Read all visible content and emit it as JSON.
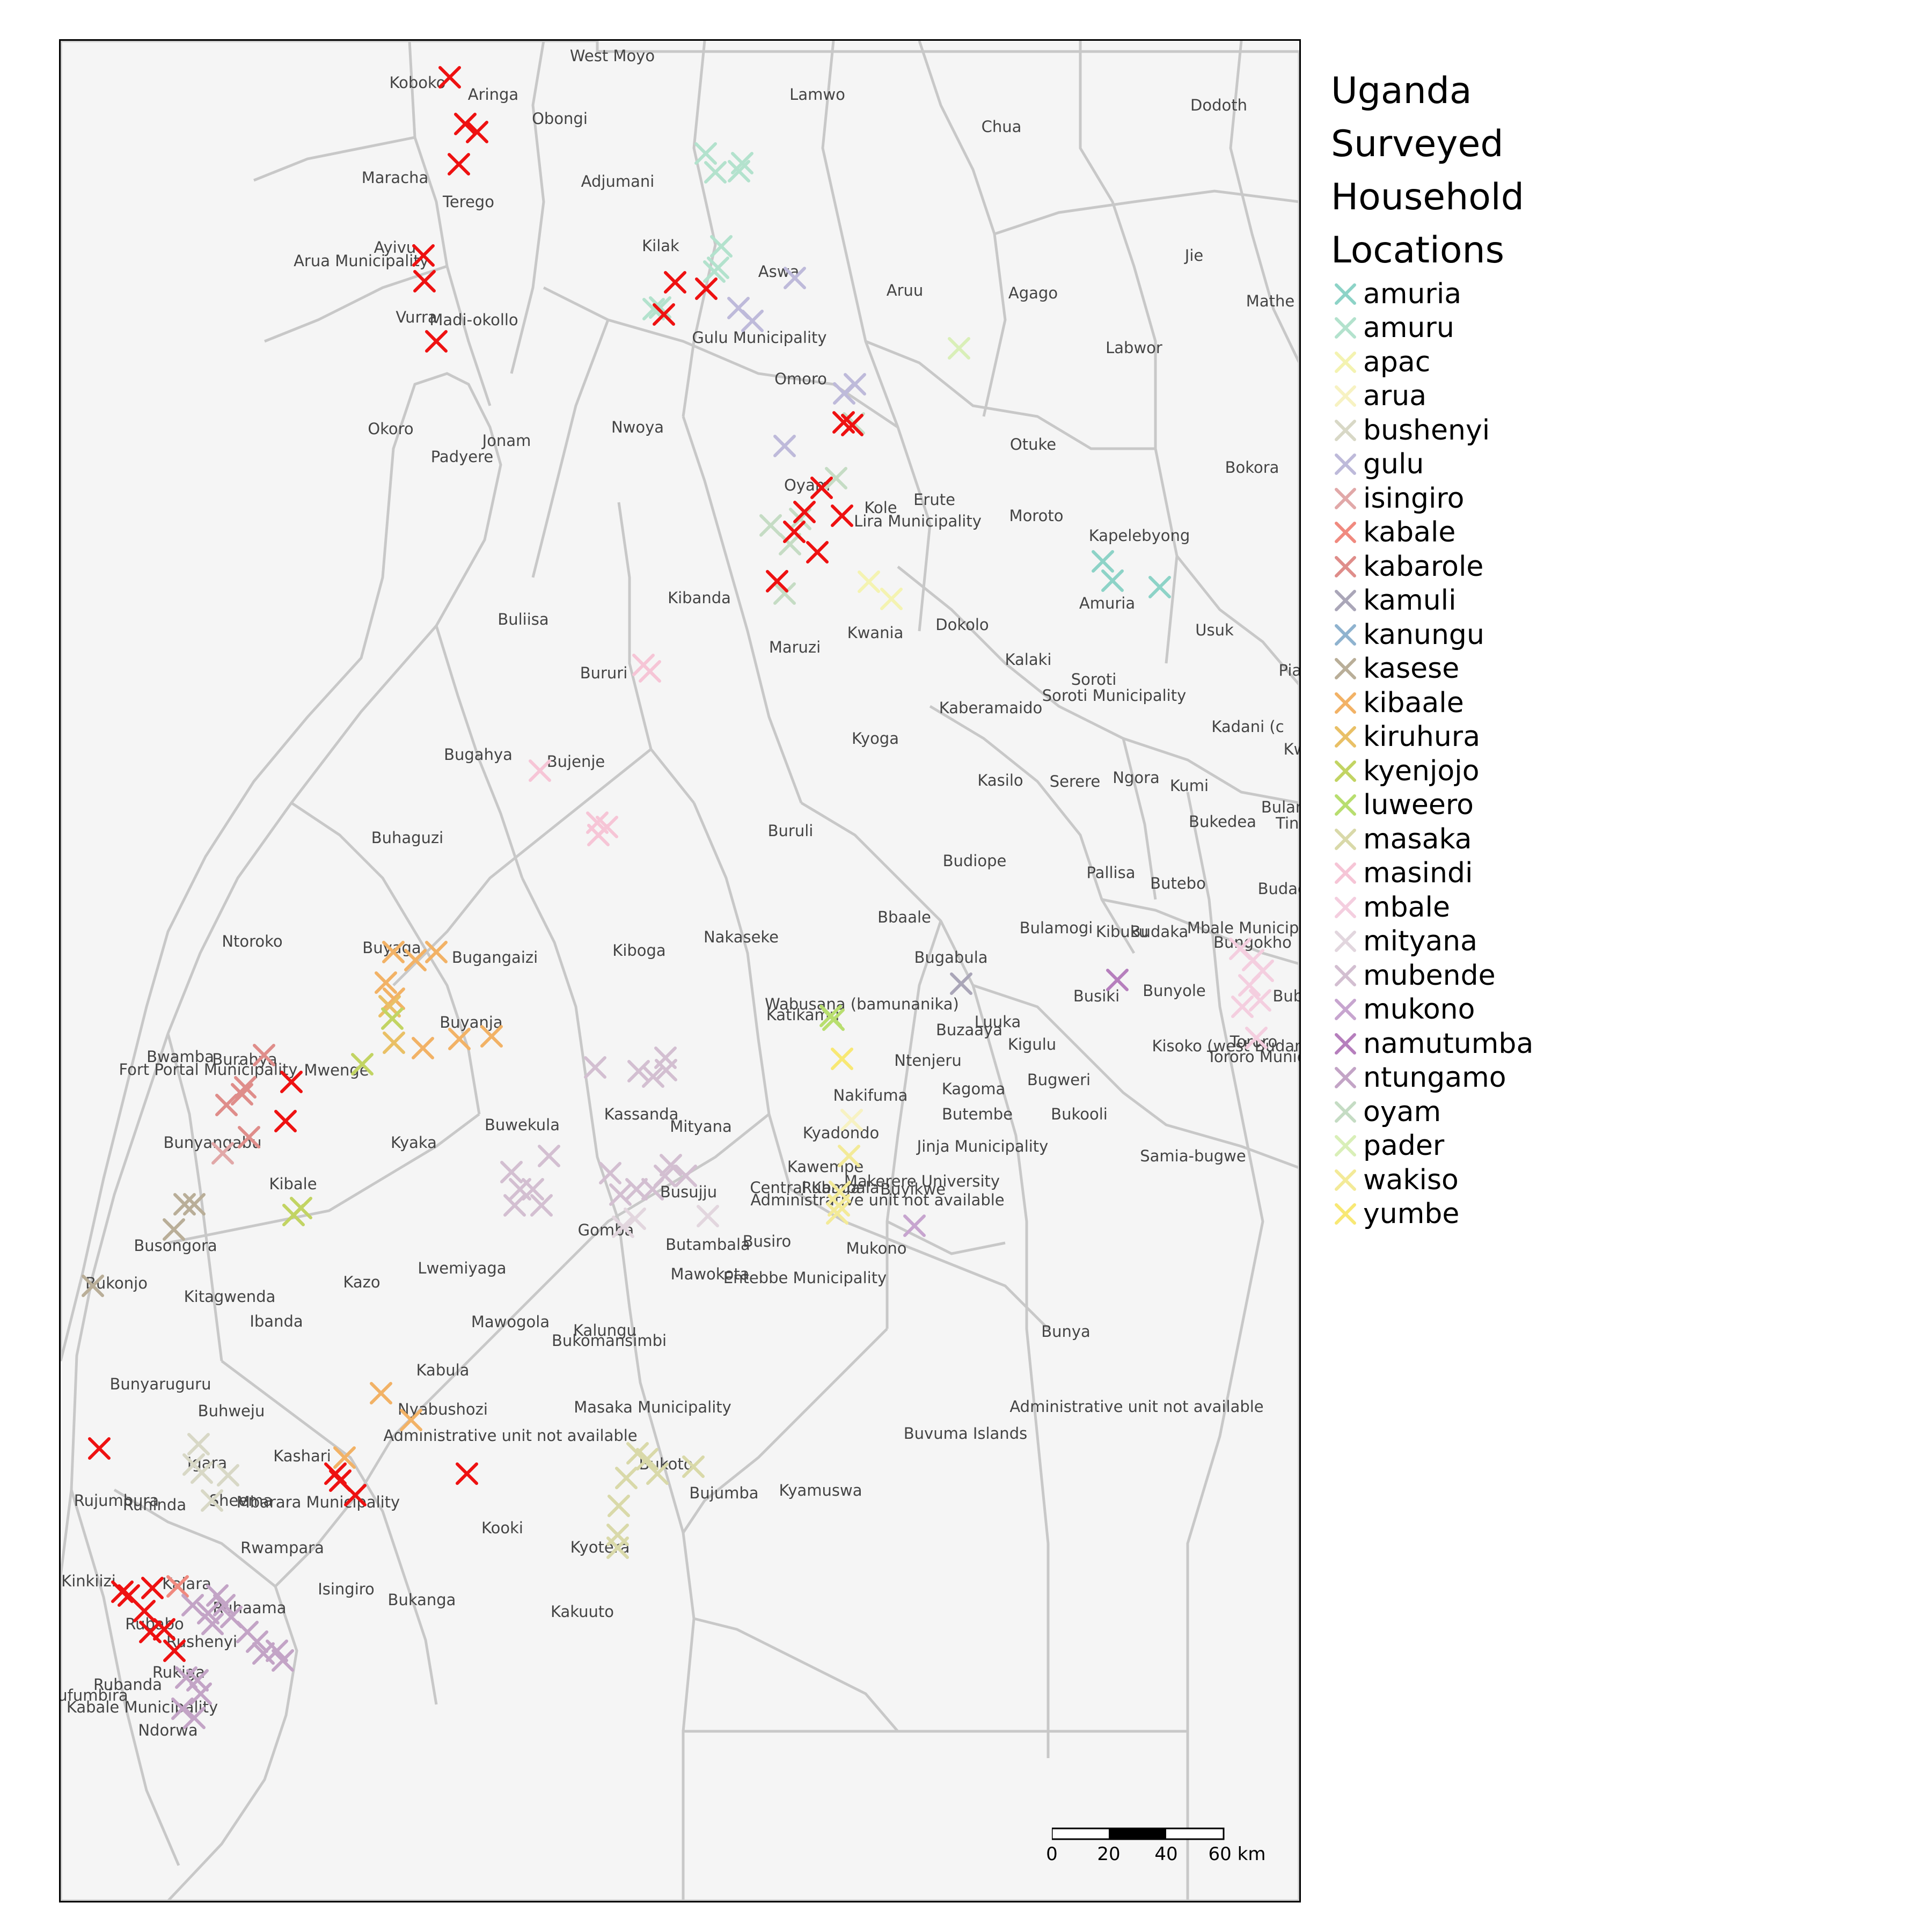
{
  "legend": {
    "title_lines": [
      "Uganda",
      "Surveyed",
      "Household",
      "Locations"
    ],
    "items": [
      {
        "label": "amuria",
        "color": "#8dd3c7"
      },
      {
        "label": "amuru",
        "color": "#b3e2cd"
      },
      {
        "label": "apac",
        "color": "#f4f3b1"
      },
      {
        "label": "arua",
        "color": "#f7f2c2"
      },
      {
        "label": "bushenyi",
        "color": "#d8d8c6"
      },
      {
        "label": "gulu",
        "color": "#bebada"
      },
      {
        "label": "isingiro",
        "color": "#e1a8a8"
      },
      {
        "label": "kabale",
        "color": "#f08a7f"
      },
      {
        "label": "kabarole",
        "color": "#df8d8a"
      },
      {
        "label": "kamuli",
        "color": "#aaa6b8"
      },
      {
        "label": "kanungu",
        "color": "#8fb3cf"
      },
      {
        "label": "kasese",
        "color": "#b9ae98"
      },
      {
        "label": "kibaale",
        "color": "#f2b266"
      },
      {
        "label": "kiruhura",
        "color": "#e9c066"
      },
      {
        "label": "kyenjojo",
        "color": "#c2d463"
      },
      {
        "label": "luweero",
        "color": "#b8de6f"
      },
      {
        "label": "masaka",
        "color": "#d9d9a9"
      },
      {
        "label": "masindi",
        "color": "#f6c5d6"
      },
      {
        "label": "mbale",
        "color": "#f4cedf"
      },
      {
        "label": "mityana",
        "color": "#e2d6de"
      },
      {
        "label": "mubende",
        "color": "#d3bfd1"
      },
      {
        "label": "mukono",
        "color": "#c7a5cf"
      },
      {
        "label": "namutumba",
        "color": "#b67fbd"
      },
      {
        "label": "ntungamo",
        "color": "#c3a4c6"
      },
      {
        "label": "oyam",
        "color": "#c5dcc4"
      },
      {
        "label": "pader",
        "color": "#d9efb8"
      },
      {
        "label": "wakiso",
        "color": "#f3ea98"
      },
      {
        "label": "yumbe",
        "color": "#f8e874"
      }
    ]
  },
  "unlabeled_marker_color": "#ee1111",
  "scalebar": {
    "ticks": [
      "0",
      "20",
      "40",
      "60 km"
    ]
  },
  "district_labels": [
    "West Moyo",
    "Koboko",
    "Aringa",
    "Obongi",
    "Lamwo",
    "Dodoth",
    "Chua",
    "Maracha",
    "Terego",
    "Adjumani",
    "Ayivu",
    "Arua Municipality",
    "Kilak",
    "Aswa",
    "Aruu",
    "Jie",
    "Agago",
    "Mathe",
    "Vurra",
    "Madi-okollo",
    "Gulu Municipality",
    "Labwor",
    "Omoro",
    "Okoro",
    "Padyere",
    "Jonam",
    "Nwoya",
    "Otuke",
    "Bokora",
    "Oyam",
    "Kole",
    "Erute",
    "Lira Municipality",
    "Moroto",
    "Kapelebyong",
    "Amuria",
    "Kibanda",
    "Kwania",
    "Dokolo",
    "Usuk",
    "Buliisa",
    "Bururi",
    "Maruzi",
    "Kalaki",
    "Soroti",
    "Soroti Municipality",
    "Pian",
    "Kaberamaido",
    "Kadani (c",
    "Kw",
    "Bugahya",
    "Bujenje",
    "Kyoga",
    "Kasilo",
    "Serere",
    "Ngora",
    "Kumi",
    "Bulam",
    "Bukedea",
    "Ting",
    "Buhaguzi",
    "Buruli",
    "Budiope",
    "Pallisa",
    "Butebo",
    "Budad",
    "Bbaale",
    "Ntoroko",
    "Buyaga",
    "Bugangaizi",
    "Kiboga",
    "Nakaseke",
    "Bulamogi",
    "Kibuku",
    "Budaka",
    "Mbale Municipa",
    "Bungokho",
    "Bugabula",
    "Busiki",
    "Bunyole",
    "Bubul",
    "Buyanja",
    "Wabusana (bamunanika)",
    "Katikamu",
    "Luuka",
    "Buzaaya",
    "Kigulu",
    "Kisoko (west Budama)",
    "Tororo",
    "Tororo Municipa",
    "Bwamba",
    "Burahya",
    "Fort Portal Municipality",
    "Mwenge",
    "Ntenjeru",
    "Kagoma",
    "Bugweri",
    "Nakifuma",
    "Kassanda",
    "Buwekula",
    "Mityana",
    "Bunyangabu",
    "Kyadondo",
    "Butembe",
    "Bukooli",
    "Kyaka",
    "Jinja Municipality",
    "Kibale",
    "Kawempe",
    "Samia-bugwe",
    "Makerere University",
    "Central Kampala",
    "Rubaga",
    "Buyikwe",
    "Busujju",
    "Administrative unit not available",
    "Busongora",
    "Gomba",
    "Butambala",
    "Busiro",
    "Mukono",
    "Bukonjo",
    "Mawokota",
    "Entebbe Municipality",
    "Kazo",
    "Lwemiyaga",
    "Kitagwenda",
    "Mawogola",
    "Ibanda",
    "Kalungu",
    "Bukomansimbi",
    "Bunya",
    "Kabula",
    "Bunyaruguru",
    "Buhweju",
    "Nyabushozi",
    "Masaka Municipality",
    "Administrative unit not available",
    "Administrative unit not available",
    "Buvuma Islands",
    "Igara",
    "Kashari",
    "Bukoto",
    "Rujumbura",
    "Ruhinda",
    "Sheema",
    "Mbarara Municipality",
    "Kyamuswa",
    "Bujumba",
    "Kooki",
    "Kyotera",
    "Rwampara",
    "Kinkiizi",
    "Kajara",
    "Isingiro",
    "Bukanga",
    "Ruhaama",
    "Kakuuto",
    "Rubabo",
    "Rushenyi",
    "Rukiga",
    "Rubanda",
    "Bufumbira",
    "Kabale Municipality",
    "Ndorwa"
  ]
}
